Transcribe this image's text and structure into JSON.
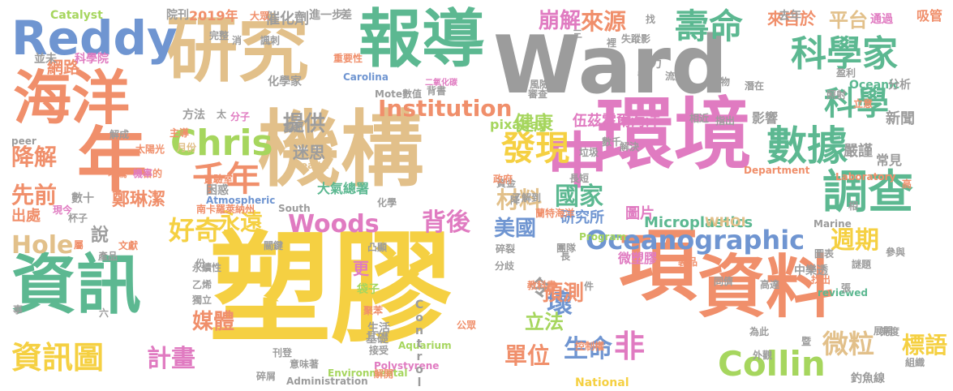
{
  "palette": {
    "gold": "#F5D042",
    "tan": "#E2C08A",
    "teal": "#5CB891",
    "pink": "#E07BC1",
    "gray": "#9C9C9C",
    "salmon": "#F08F6B",
    "blue": "#6F95D1",
    "green": "#A6D65E"
  },
  "words": [
    {
      "text": "塑膠",
      "color": "#F5D042"
    },
    {
      "text": "Ward",
      "color": "#9C9C9C"
    },
    {
      "text": "機構",
      "color": "#E2C08A"
    },
    {
      "text": "環境",
      "color": "#E07BC1"
    },
    {
      "text": "研究",
      "color": "#E2C08A"
    },
    {
      "text": "報導",
      "color": "#5CB891"
    },
    {
      "text": "資訊",
      "color": "#5CB891"
    },
    {
      "text": "資料",
      "color": "#F08F6B"
    },
    {
      "text": "海洋",
      "color": "#F08F6B"
    },
    {
      "text": "項",
      "color": "#F08F6B"
    },
    {
      "text": "年",
      "color": "#F08F6B"
    },
    {
      "text": "中",
      "color": "#E07BC1"
    },
    {
      "text": "Reddy",
      "color": "#6F95D1"
    },
    {
      "text": "壽命",
      "color": "#5CB891"
    },
    {
      "text": "科學家",
      "color": "#5CB891"
    },
    {
      "text": "調查",
      "color": "#5CB891"
    },
    {
      "text": "數據",
      "color": "#5CB891"
    },
    {
      "text": "Collin",
      "color": "#A6D65E"
    },
    {
      "text": "Oceanographic",
      "color": "#6F95D1"
    },
    {
      "text": "Chris",
      "color": "#A6D65E"
    },
    {
      "text": "科學",
      "color": "#5CB891"
    },
    {
      "text": "千年",
      "color": "#F08F6B"
    },
    {
      "text": "發現",
      "color": "#F5D042"
    },
    {
      "text": "Woods",
      "color": "#E07BC1"
    },
    {
      "text": "Institution",
      "color": "#F08F6B"
    },
    {
      "text": "資訊圖",
      "color": "#F5D042"
    },
    {
      "text": "Hole",
      "color": "#E2C08A"
    },
    {
      "text": "微粒",
      "color": "#E2C08A"
    },
    {
      "text": "週期",
      "color": "#F5D042"
    },
    {
      "text": "好奇",
      "color": "#F5D042"
    },
    {
      "text": "國家",
      "color": "#5CB891"
    },
    {
      "text": "永遠",
      "color": "#F5D042"
    },
    {
      "text": "背後",
      "color": "#E07BC1"
    },
    {
      "text": "材料",
      "color": "#E2C08A"
    },
    {
      "text": "提供",
      "color": "#9C9C9C"
    },
    {
      "text": "健康",
      "color": "#A6D65E"
    },
    {
      "text": "計畫",
      "color": "#E07BC1"
    },
    {
      "text": "生命",
      "color": "#6F95D1"
    },
    {
      "text": "非",
      "color": "#E07BC1"
    },
    {
      "text": "壞",
      "color": "#6F95D1"
    },
    {
      "text": "先前",
      "color": "#F08F6B"
    },
    {
      "text": "降解",
      "color": "#F08F6B"
    },
    {
      "text": "崩解",
      "color": "#E07BC1"
    },
    {
      "text": "來源",
      "color": "#F08F6B"
    },
    {
      "text": "美國",
      "color": "#6F95D1"
    },
    {
      "text": "單位",
      "color": "#F08F6B"
    },
    {
      "text": "預測",
      "color": "#F08F6B"
    },
    {
      "text": "立法",
      "color": "#A6D65E"
    },
    {
      "text": "媒體",
      "color": "#F08F6B"
    },
    {
      "text": "令",
      "color": "#9C9C9C"
    },
    {
      "text": "標語",
      "color": "#F5D042"
    },
    {
      "text": "平台",
      "color": "#E2C08A"
    },
    {
      "text": "網路",
      "color": "#F08F6B"
    },
    {
      "text": "來自於",
      "color": "#F08F6B"
    },
    {
      "text": "伍茲霍爾海洋",
      "color": "#E07BC1"
    },
    {
      "text": "迷思",
      "color": "#9C9C9C"
    },
    {
      "text": "嚴謹",
      "color": "#9C9C9C"
    },
    {
      "text": "出處",
      "color": "#F08F6B"
    },
    {
      "text": "鄭琳潔",
      "color": "#F08F6B"
    },
    {
      "text": "說",
      "color": "#9C9C9C"
    },
    {
      "text": "更",
      "color": "#E07BC1"
    },
    {
      "text": "催化劑",
      "color": "#9C9C9C"
    },
    {
      "text": "研究所",
      "color": "#6F95D1"
    },
    {
      "text": "圖片",
      "color": "#E07BC1"
    },
    {
      "text": "新聞",
      "color": "#9C9C9C"
    },
    {
      "text": "微塑膠",
      "color": "#E07BC1"
    },
    {
      "text": "pixabay",
      "color": "#A6D65E"
    },
    {
      "text": "Microplastics",
      "color": "#5CB891"
    },
    {
      "text": "WHOI",
      "color": "#E2C08A"
    },
    {
      "text": "影響",
      "color": "#9C9C9C"
    },
    {
      "text": "常見",
      "color": "#9C9C9C"
    },
    {
      "text": "2019年",
      "color": "#F08F6B"
    },
    {
      "text": "Catalyst",
      "color": "#A6D65E"
    },
    {
      "text": "院刊",
      "color": "#9C9C9C"
    },
    {
      "text": "進一步",
      "color": "#9C9C9C"
    },
    {
      "text": "差",
      "color": "#9C9C9C"
    },
    {
      "text": "致力",
      "color": "#9C9C9C"
    },
    {
      "text": "去年",
      "color": "#9C9C9C"
    },
    {
      "text": "通過",
      "color": "#E07BC1"
    },
    {
      "text": "吸管",
      "color": "#F08F6B"
    },
    {
      "text": "並未",
      "color": "#9C9C9C"
    },
    {
      "text": "科學院",
      "color": "#E07BC1"
    },
    {
      "text": "化學家",
      "color": "#9C9C9C"
    },
    {
      "text": "方法",
      "color": "#9C9C9C"
    },
    {
      "text": "太",
      "color": "#9C9C9C"
    },
    {
      "text": "分子",
      "color": "#E07BC1"
    },
    {
      "text": "認知",
      "color": "#9C9C9C"
    },
    {
      "text": "太陽光",
      "color": "#F08F6B"
    },
    {
      "text": "月份",
      "color": "#E2C08A"
    },
    {
      "text": "吃驚",
      "color": "#F08F6B"
    },
    {
      "text": "目的",
      "color": "#F08F6B"
    },
    {
      "text": "機率",
      "color": "#E07BC1"
    },
    {
      "text": "實驗室",
      "color": "#F08F6B"
    },
    {
      "text": "困惑",
      "color": "#9C9C9C"
    },
    {
      "text": "數十",
      "color": "#9C9C9C"
    },
    {
      "text": "杯子",
      "color": "#9C9C9C"
    },
    {
      "text": "現今",
      "color": "#E07BC1"
    },
    {
      "text": "Atmospheric",
      "color": "#6F95D1"
    },
    {
      "text": "大氣總署",
      "color": "#5CB891"
    },
    {
      "text": "南卡羅萊納州",
      "color": "#F08F6B"
    },
    {
      "text": "South",
      "color": "#9C9C9C"
    },
    {
      "text": "化學",
      "color": "#9C9C9C"
    },
    {
      "text": "Carolina",
      "color": "#6F95D1"
    },
    {
      "text": "重要性",
      "color": "#F08F6B"
    },
    {
      "text": "Mote",
      "color": "#9C9C9C"
    },
    {
      "text": "數值",
      "color": "#9C9C9C"
    },
    {
      "text": "背書",
      "color": "#9C9C9C"
    },
    {
      "text": "二氧化碳",
      "color": "#E07BC1"
    },
    {
      "text": "風險",
      "color": "#9C9C9C"
    },
    {
      "text": "審查",
      "color": "#9C9C9C"
    },
    {
      "text": "皆",
      "color": "#9C9C9C"
    },
    {
      "text": "流入",
      "color": "#9C9C9C"
    },
    {
      "text": "盈利",
      "color": "#9C9C9C"
    },
    {
      "text": "Oceanic",
      "color": "#5CB891"
    },
    {
      "text": "分析",
      "color": "#9C9C9C"
    },
    {
      "text": "照射",
      "color": "#9C9C9C"
    },
    {
      "text": "立意",
      "color": "#F08F6B"
    },
    {
      "text": "相近",
      "color": "#9C9C9C"
    },
    {
      "text": "指出",
      "color": "#9C9C9C"
    },
    {
      "text": "垃圾",
      "color": "#9C9C9C"
    },
    {
      "text": "數千",
      "color": "#9C9C9C"
    },
    {
      "text": "Department",
      "color": "#F08F6B"
    },
    {
      "text": "Laboratory",
      "color": "#F08F6B"
    },
    {
      "text": "Marine",
      "color": "#9C9C9C"
    },
    {
      "text": "長短",
      "color": "#9C9C9C"
    },
    {
      "text": "資金",
      "color": "#9C9C9C"
    },
    {
      "text": "政府",
      "color": "#F08F6B"
    },
    {
      "text": "了解到",
      "color": "#9C9C9C"
    },
    {
      "text": "凸顯",
      "color": "#9C9C9C"
    },
    {
      "text": "碎裂",
      "color": "#9C9C9C"
    },
    {
      "text": "團隊",
      "color": "#9C9C9C"
    },
    {
      "text": "Program",
      "color": "#A6D65E"
    },
    {
      "text": "製品",
      "color": "#F08F6B"
    },
    {
      "text": "圖表",
      "color": "#9C9C9C"
    },
    {
      "text": "中樂透",
      "color": "#9C9C9C"
    },
    {
      "text": "參與",
      "color": "#9C9C9C"
    },
    {
      "text": "分歧",
      "color": "#9C9C9C"
    },
    {
      "text": "教科書",
      "color": "#F08F6B"
    },
    {
      "text": "高達",
      "color": "#9C9C9C"
    },
    {
      "text": "reviewed",
      "color": "#5CB891"
    },
    {
      "text": "找出",
      "color": "#F08F6B"
    },
    {
      "text": "同儕",
      "color": "#9C9C9C"
    },
    {
      "text": "袋子",
      "color": "#A6D65E"
    },
    {
      "text": "聚苯",
      "color": "#F08F6B"
    },
    {
      "text": "生活",
      "color": "#9C9C9C"
    },
    {
      "text": "基礎",
      "color": "#9C9C9C"
    },
    {
      "text": "接受",
      "color": "#9C9C9C"
    },
    {
      "text": "Aquarium",
      "color": "#A6D65E"
    },
    {
      "text": "Polystyrene",
      "color": "#E07BC1"
    },
    {
      "text": "控制權",
      "color": "#F08F6B"
    },
    {
      "text": "National",
      "color": "#F5D042"
    },
    {
      "text": "外觀",
      "color": "#9C9C9C"
    },
    {
      "text": "釣魚線",
      "color": "#9C9C9C"
    },
    {
      "text": "組織",
      "color": "#9C9C9C"
    },
    {
      "text": "展開",
      "color": "#9C9C9C"
    },
    {
      "text": "永續性",
      "color": "#9C9C9C"
    },
    {
      "text": "乙烯",
      "color": "#9C9C9C"
    },
    {
      "text": "獨立",
      "color": "#9C9C9C"
    },
    {
      "text": "刊登",
      "color": "#9C9C9C"
    },
    {
      "text": "碎屑",
      "color": "#9C9C9C"
    },
    {
      "text": "Environmental",
      "color": "#A6D65E"
    },
    {
      "text": "解開",
      "color": "#F08F6B"
    },
    {
      "text": "Administration",
      "color": "#9C9C9C"
    },
    {
      "text": "Control",
      "color": "#9C9C9C"
    },
    {
      "text": "產品",
      "color": "#9C9C9C"
    },
    {
      "text": "關鍵",
      "color": "#9C9C9C"
    },
    {
      "text": "文獻",
      "color": "#F08F6B"
    },
    {
      "text": "屬",
      "color": "#F08F6B"
    },
    {
      "text": "份",
      "color": "#9C9C9C"
    },
    {
      "text": "事",
      "color": "#9C9C9C"
    },
    {
      "text": "六",
      "color": "#9C9C9C"
    },
    {
      "text": "公眾",
      "color": "#F08F6B"
    },
    {
      "text": "意味著",
      "color": "#9C9C9C"
    },
    {
      "text": "peer",
      "color": "#9C9C9C"
    },
    {
      "text": "解成",
      "color": "#9C9C9C"
    },
    {
      "text": "主導",
      "color": "#F08F6B"
    },
    {
      "text": "Health",
      "color": "#E2C08A"
    },
    {
      "text": "失蹤影",
      "color": "#9C9C9C"
    },
    {
      "text": "找",
      "color": "#9C9C9C"
    },
    {
      "text": "完整",
      "color": "#9C9C9C"
    },
    {
      "text": "消",
      "color": "#9C9C9C"
    },
    {
      "text": "諷刺",
      "color": "#9C9C9C"
    },
    {
      "text": "大眾",
      "color": "#F08F6B"
    },
    {
      "text": "三",
      "color": "#9C9C9C"
    },
    {
      "text": "裡",
      "color": "#9C9C9C"
    },
    {
      "text": "產物",
      "color": "#9C9C9C"
    },
    {
      "text": "潛在",
      "color": "#9C9C9C"
    },
    {
      "text": "解決",
      "color": "#9C9C9C"
    },
    {
      "text": "相",
      "color": "#9C9C9C"
    },
    {
      "text": "高",
      "color": "#F08F6B"
    },
    {
      "text": "張",
      "color": "#9C9C9C"
    },
    {
      "text": "件",
      "color": "#9C9C9C"
    },
    {
      "text": "長",
      "color": "#9C9C9C"
    },
    {
      "text": "降",
      "color": "#9C9C9C"
    },
    {
      "text": "蘭特海洋",
      "color": "#F08F6B"
    },
    {
      "text": "謎題",
      "color": "#9C9C9C"
    },
    {
      "text": "暨",
      "color": "#9C9C9C"
    },
    {
      "text": "亮度",
      "color": "#9C9C9C"
    },
    {
      "text": "為此",
      "color": "#9C9C9C"
    }
  ]
}
